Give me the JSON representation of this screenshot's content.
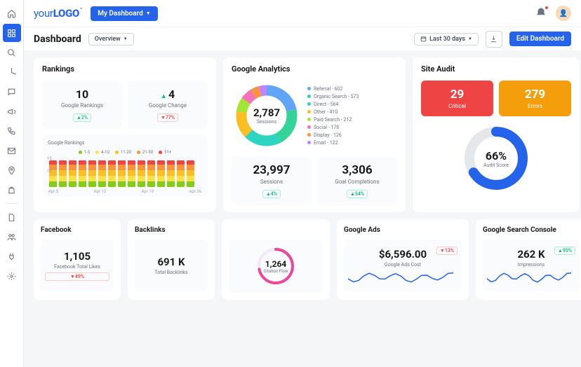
{
  "logo": {
    "part1": "your",
    "part2": "LOGO",
    "tm": "™"
  },
  "topbar": {
    "my_dashboard": "My Dashboard"
  },
  "header": {
    "title": "Dashboard",
    "overview": "Overview",
    "date_range": "Last 30 days",
    "edit": "Edit Dashboard"
  },
  "sidebar_icons": [
    "home",
    "grid",
    "search",
    "pie",
    "chat",
    "megaphone",
    "phone",
    "mail",
    "pin",
    "bag",
    "file",
    "users",
    "plug",
    "gear"
  ],
  "rankings": {
    "title": "Rankings",
    "cards": [
      {
        "value": "10",
        "label": "Google Rankings",
        "trend_dir": "up",
        "trend": "2%"
      },
      {
        "value": "4",
        "label": "Google Change",
        "arrow": "up",
        "trend_dir": "down",
        "trend": "77%"
      }
    ],
    "chart": {
      "title": "Google Rankings",
      "legend": [
        {
          "label": "1-3",
          "color": "#84cc16"
        },
        {
          "label": "4-10",
          "color": "#fde047"
        },
        {
          "label": "11-20",
          "color": "#fbbf24"
        },
        {
          "label": "21-50",
          "color": "#fb923c"
        },
        {
          "label": "51+",
          "color": "#ef4444"
        }
      ],
      "y_top": "15",
      "y_mid": "10",
      "bars": [
        [
          8,
          8,
          8,
          8,
          6
        ],
        [
          8,
          8,
          8,
          8,
          6
        ],
        [
          8,
          8,
          8,
          8,
          6
        ],
        [
          8,
          8,
          8,
          8,
          6
        ],
        [
          8,
          8,
          8,
          8,
          6
        ],
        [
          8,
          8,
          8,
          8,
          6
        ],
        [
          8,
          8,
          8,
          8,
          6
        ],
        [
          8,
          8,
          8,
          8,
          6
        ],
        [
          8,
          8,
          8,
          8,
          6
        ],
        [
          8,
          8,
          8,
          8,
          6
        ],
        [
          8,
          8,
          8,
          8,
          6
        ],
        [
          8,
          8,
          8,
          8,
          6
        ],
        [
          8,
          8,
          8,
          8,
          6
        ],
        [
          8,
          8,
          8,
          8,
          6
        ],
        [
          8,
          8,
          8,
          8,
          6
        ]
      ],
      "seg_colors": [
        "#84cc16",
        "#fde047",
        "#fbbf24",
        "#fb923c",
        "#ef4444"
      ],
      "xaxis": [
        "Apr 5",
        "Apr 12",
        "Apr 19",
        "Apr 26"
      ]
    }
  },
  "analytics": {
    "title": "Google Analytics",
    "donut": {
      "value": "2,787",
      "label": "Sessions",
      "slices": [
        {
          "label": "Referral",
          "value": "602",
          "color": "#60a5fa",
          "pct": 21.6
        },
        {
          "label": "Organic Search",
          "value": "573",
          "color": "#34d399",
          "pct": 20.6
        },
        {
          "label": "Direct",
          "value": "564",
          "color": "#2dd4bf",
          "pct": 20.2
        },
        {
          "label": "Other",
          "value": "410",
          "color": "#fbbf24",
          "pct": 14.7
        },
        {
          "label": "Paid Search",
          "value": "212",
          "color": "#a3e635",
          "pct": 7.6
        },
        {
          "label": "Social",
          "value": "178",
          "color": "#f472b6",
          "pct": 6.4
        },
        {
          "label": "Display",
          "value": "126",
          "color": "#fb923c",
          "pct": 4.5
        },
        {
          "label": "Email",
          "value": "122",
          "color": "#c084fc",
          "pct": 4.4
        }
      ]
    },
    "stats": [
      {
        "value": "23,997",
        "label": "Sessions",
        "trend_dir": "up",
        "trend": "4%"
      },
      {
        "value": "3,306",
        "label": "Goal Completions",
        "trend_dir": "up",
        "trend": "54%"
      }
    ]
  },
  "audit": {
    "title": "Site Audit",
    "cards": [
      {
        "value": "29",
        "label": "Critical",
        "variant": "red"
      },
      {
        "value": "279",
        "label": "Errors",
        "variant": "orange"
      }
    ],
    "gauge": {
      "value": "66%",
      "label": "Audit Score",
      "pct": 66,
      "color": "#2563eb",
      "track": "#e5e7eb"
    }
  },
  "bottom": {
    "facebook": {
      "title": "Facebook",
      "value": "1,105",
      "label": "Facebook Total Likes",
      "trend_dir": "down",
      "trend": "49%"
    },
    "backlinks": {
      "title": "Backlinks",
      "value": "691 K",
      "label": "Total Backlinks"
    },
    "citation": {
      "value": "1,264",
      "label": "Citation Flow",
      "pct": 72,
      "color": "#ec4899",
      "track": "#f3e8f5"
    },
    "ads": {
      "title": "Google Ads",
      "value": "$6,596.00",
      "label": "Google Ads Cost",
      "trend_dir": "down",
      "trend": "13%",
      "spark_color": "#2563eb"
    },
    "gsc": {
      "title": "Google Search Console",
      "value": "262 K",
      "label": "Impressions",
      "trend_dir": "up",
      "trend": "95%",
      "spark_color": "#2563eb"
    }
  }
}
